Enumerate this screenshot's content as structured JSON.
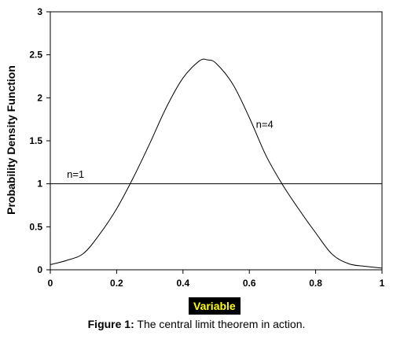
{
  "chart_data": {
    "type": "line",
    "xlabel": "Variable",
    "ylabel": "Probability Density Function",
    "xlim": [
      0,
      1
    ],
    "ylim": [
      0,
      3
    ],
    "xticks": [
      "0",
      "0.2",
      "0.4",
      "0.6",
      "0.8",
      "1"
    ],
    "yticks": [
      "0",
      "0.5",
      "1",
      "1.5",
      "2",
      "2.5",
      "3"
    ],
    "grid": false,
    "series": [
      {
        "name": "n=1",
        "x": [
          0,
          1
        ],
        "y": [
          1,
          1
        ]
      },
      {
        "name": "n=4",
        "x": [
          0,
          0.05,
          0.1,
          0.15,
          0.2,
          0.25,
          0.3,
          0.35,
          0.4,
          0.45,
          0.475,
          0.5,
          0.55,
          0.6,
          0.65,
          0.7,
          0.75,
          0.8,
          0.85,
          0.9,
          0.95,
          1
        ],
        "y": [
          0.06,
          0.11,
          0.19,
          0.42,
          0.71,
          1.07,
          1.47,
          1.89,
          2.23,
          2.43,
          2.44,
          2.4,
          2.16,
          1.77,
          1.33,
          0.99,
          0.7,
          0.43,
          0.18,
          0.07,
          0.04,
          0.02
        ]
      }
    ],
    "annotations": [
      {
        "text": "n=1",
        "x": 0.05,
        "y": 1.07
      },
      {
        "text": "n=4",
        "x": 0.62,
        "y": 1.65
      }
    ]
  },
  "caption": {
    "label": "Figure 1:",
    "text": " The central limit theorem in action."
  }
}
